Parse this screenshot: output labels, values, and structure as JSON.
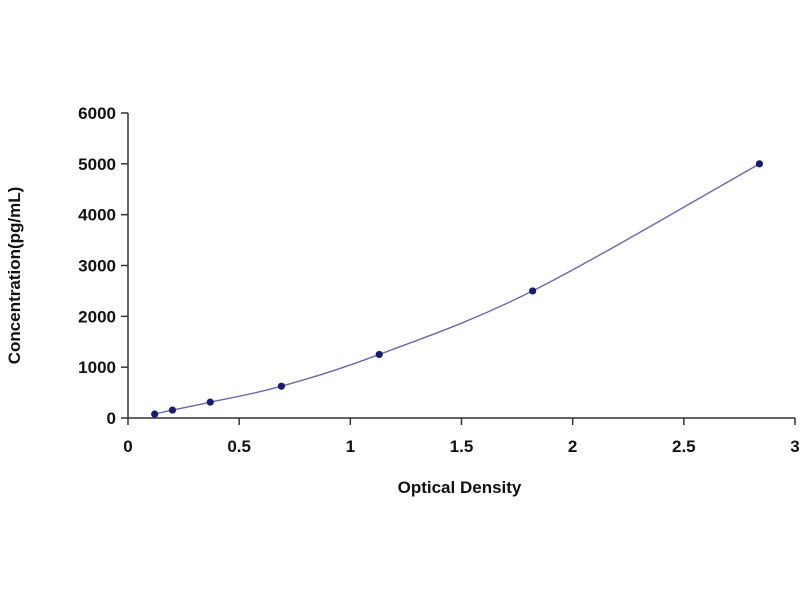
{
  "chart_data": {
    "type": "scatter",
    "title": "",
    "xlabel": "Optical Density",
    "ylabel": "Concentration(pg/mL)",
    "xlim": [
      0,
      3
    ],
    "ylim": [
      0,
      6000
    ],
    "x_ticks": [
      0,
      0.5,
      1,
      1.5,
      2,
      2.5,
      3
    ],
    "x_tick_labels": [
      "0",
      "0.5",
      "1",
      "1.5",
      "2",
      "2.5",
      "3"
    ],
    "y_ticks": [
      0,
      1000,
      2000,
      3000,
      4000,
      5000,
      6000
    ],
    "y_tick_labels": [
      "0",
      "1000",
      "2000",
      "3000",
      "4000",
      "5000",
      "6000"
    ],
    "grid": false,
    "legend": "none",
    "series": [
      {
        "x": [
          0.12,
          0.2,
          0.37,
          0.69,
          1.13,
          1.82,
          2.84
        ],
        "y": [
          78,
          156,
          312,
          625,
          1250,
          2500,
          5000
        ]
      }
    ],
    "colors": {
      "points": "#1a1a6e",
      "curve": "#6a6aaa",
      "axis": "#333333"
    }
  }
}
